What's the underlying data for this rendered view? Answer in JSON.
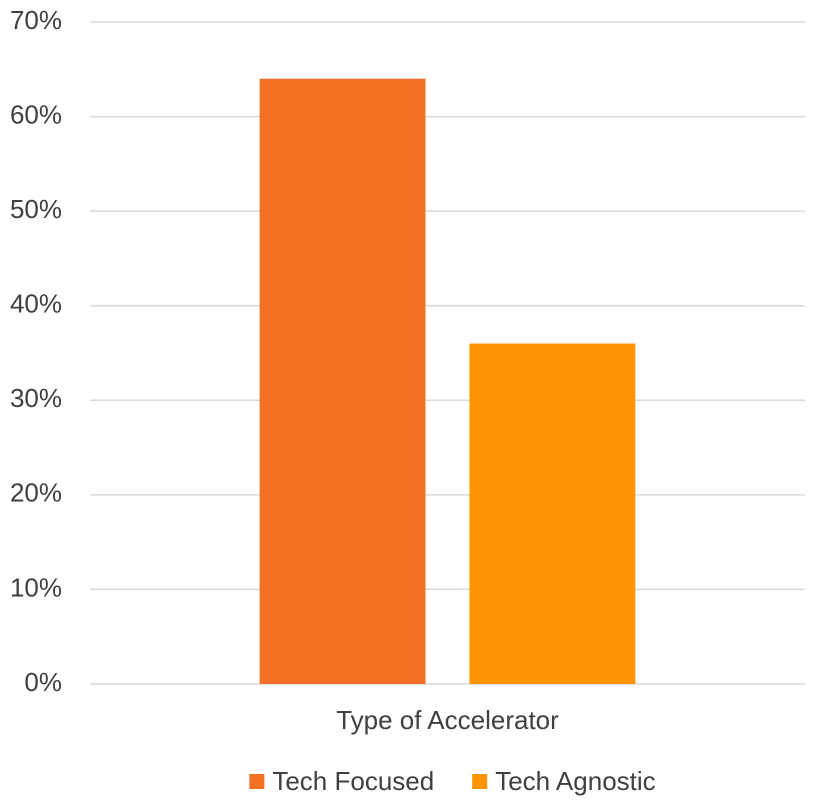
{
  "chart_data": {
    "type": "bar",
    "categories": [
      "Type of Accelerator"
    ],
    "series": [
      {
        "name": "Tech Focused",
        "color": "#f37124",
        "values": [
          64
        ]
      },
      {
        "name": "Tech Agnostic",
        "color": "#fc9403",
        "values": [
          36
        ]
      }
    ],
    "ylim": [
      0,
      70
    ],
    "yticks": [
      {
        "value": 0,
        "label": "0%"
      },
      {
        "value": 10,
        "label": "10%"
      },
      {
        "value": 20,
        "label": "20%"
      },
      {
        "value": 30,
        "label": "30%"
      },
      {
        "value": 40,
        "label": "40%"
      },
      {
        "value": 50,
        "label": "50%"
      },
      {
        "value": 60,
        "label": "60%"
      },
      {
        "value": 70,
        "label": "70%"
      }
    ],
    "grid": true,
    "legend": "bottom"
  }
}
